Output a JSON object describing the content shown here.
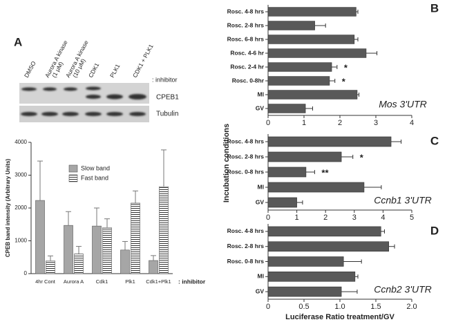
{
  "blot": {
    "lanes": [
      [
        "DMSO"
      ],
      [
        "Aurora A kinase",
        "(1 μM)"
      ],
      [
        "Aurora A kinase",
        "(10 μM)"
      ],
      [
        "CDK1"
      ],
      [
        "PLK1"
      ],
      [
        "CDK1 + PLK1"
      ]
    ],
    "inhibitor_label": ": inhibitor",
    "rows": [
      "CPEB1",
      "Tubulin"
    ]
  },
  "chart_data": [
    {
      "type": "bar",
      "panel": "A",
      "ylabel": "CPEB band intensity (Arbitrary Units)",
      "xlabel": ": inhibitor",
      "categories": [
        "4hr Cont",
        "Aurora A",
        "Cdk1",
        "Plk1",
        "Cdk1+Plk1"
      ],
      "series": [
        {
          "name": "Slow band",
          "color": "#a6a6a6",
          "values": [
            2230,
            1470,
            1450,
            720,
            400
          ],
          "errors": [
            1200,
            420,
            550,
            260,
            150
          ]
        },
        {
          "name": "Fast band",
          "color": "#ffffff",
          "hatch": true,
          "values": [
            390,
            600,
            1400,
            2150,
            2650
          ],
          "errors": [
            150,
            230,
            270,
            370,
            1120
          ]
        }
      ],
      "ylim": [
        0,
        4000
      ],
      "yticks": [
        0,
        1000,
        2000,
        3000,
        4000
      ],
      "legend": "upper left"
    },
    {
      "type": "barh",
      "panel": "B",
      "label": "Mos 3'UTR",
      "ylabel": "Incubation conditions",
      "color": "#595959",
      "categories": [
        "Rosc. 4-8 hrs",
        "Rosc. 2-8 hrs",
        "Rosc. 6-8 hrs",
        "Rosc. 4-6 hr",
        "Rosc. 2-4 hr",
        "Rosc. 0-8hr",
        "MI",
        "GV"
      ],
      "values": [
        2.45,
        1.3,
        2.4,
        2.73,
        1.77,
        1.71,
        2.48,
        1.04
      ],
      "errors": [
        0.05,
        0.3,
        0.1,
        0.3,
        0.15,
        0.15,
        0.05,
        0.2
      ],
      "annotations": [
        null,
        null,
        null,
        null,
        "*",
        "*",
        null,
        null
      ],
      "xlim": [
        0,
        4
      ],
      "xticks": [
        0,
        1,
        2,
        3,
        4
      ]
    },
    {
      "type": "barh",
      "panel": "C",
      "label": "Ccnb1 3'UTR",
      "color": "#595959",
      "categories": [
        "Rosc. 4-8 hrs",
        "Rosc. 2-8 hrs",
        "Rosc. 0-8 hrs",
        "MI",
        "GV"
      ],
      "values": [
        4.28,
        2.55,
        1.32,
        3.34,
        1.0
      ],
      "errors": [
        0.35,
        0.4,
        0.3,
        0.6,
        0.2
      ],
      "annotations": [
        null,
        "*",
        "**",
        null,
        null
      ],
      "xlim": [
        0,
        5
      ],
      "xticks": [
        0,
        1,
        2,
        3,
        4,
        5
      ]
    },
    {
      "type": "barh",
      "panel": "D",
      "label": "Ccnb2 3'UTR",
      "xlabel": "Luciferase Ratio treatment/GV",
      "color": "#595959",
      "categories": [
        "Rosc. 4-8 hrs",
        "Rosc. 2-8 hrs",
        "Rosc. 0-8 hrs",
        "MI",
        "GV"
      ],
      "values": [
        1.57,
        1.68,
        1.05,
        1.21,
        1.02
      ],
      "errors": [
        0.05,
        0.08,
        0.25,
        0.04,
        0.22
      ],
      "xlim": [
        0,
        2
      ],
      "xticks": [
        0,
        0.5,
        {
          "value": 1,
          "label": "1.0"
        },
        1.5,
        {
          "value": 2,
          "label": "2.0"
        }
      ]
    }
  ]
}
